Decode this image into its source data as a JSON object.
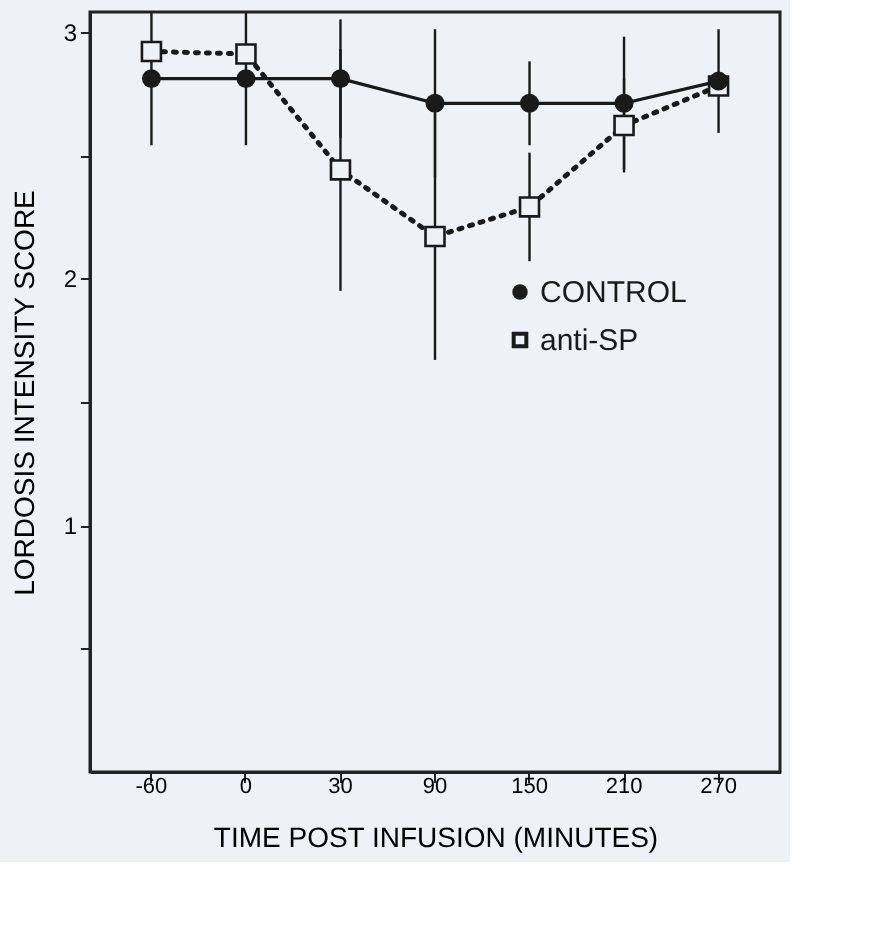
{
  "chart_data": {
    "type": "line",
    "xlabel": "TIME POST INFUSION (MINUTES)",
    "ylabel": "LORDOSIS INTENSITY SCORE",
    "categories": [
      "-60",
      "0",
      "30",
      "90",
      "150",
      "210",
      "270"
    ],
    "ylim": [
      0,
      3.08
    ],
    "yticks": [
      {
        "value": 0.5,
        "label": null
      },
      1,
      {
        "value": 1.5,
        "label": null
      },
      2,
      {
        "value": 2.5,
        "label": null
      },
      3
    ],
    "series": [
      {
        "name": "CONTROL",
        "color": "#1a1a1a",
        "marker": "circle",
        "line_style": "solid",
        "values": [
          2.81,
          2.81,
          2.81,
          2.71,
          2.71,
          2.71,
          2.8
        ],
        "errors": [
          0.27,
          0.27,
          0.24,
          0.3,
          0.17,
          0.27,
          0.21
        ]
      },
      {
        "name": "anti-SP",
        "color": "#1a1a1a",
        "marker": "square",
        "line_style": "dotted",
        "values": [
          2.92,
          2.91,
          2.44,
          2.17,
          2.29,
          2.62,
          2.78
        ],
        "errors": [
          null,
          null,
          0.49,
          0.5,
          0.22,
          0.19,
          null
        ]
      }
    ],
    "grid": false,
    "legend": "right"
  }
}
